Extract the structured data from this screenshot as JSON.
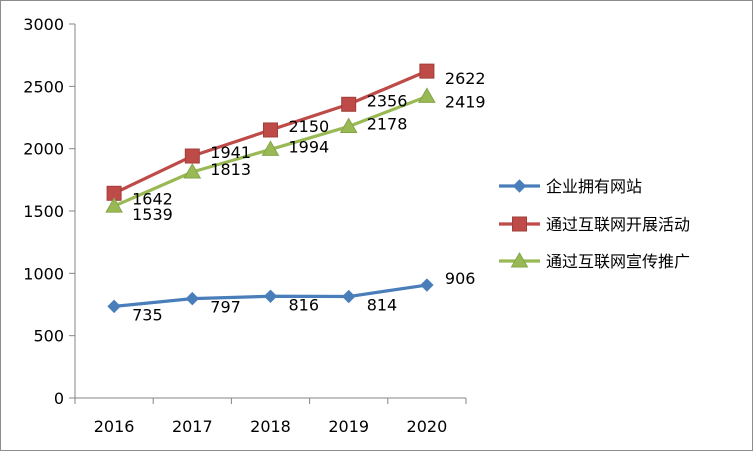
{
  "chart_data": {
    "type": "line",
    "title": "",
    "xlabel": "",
    "ylabel": "",
    "categories": [
      "2016",
      "2017",
      "2018",
      "2019",
      "2020"
    ],
    "ylim": [
      0,
      3000
    ],
    "yticks": [
      0,
      500,
      1000,
      1500,
      2000,
      2500,
      3000
    ],
    "grid": false,
    "legend_position": "right",
    "series": [
      {
        "name": "企业拥有网站",
        "values": [
          735,
          797,
          816,
          814,
          906
        ],
        "color": "#4a7ebb",
        "marker": "diamond"
      },
      {
        "name": "通过互联网开展活动",
        "values": [
          1642,
          1941,
          2150,
          2356,
          2622
        ],
        "color": "#be4b48",
        "marker": "square"
      },
      {
        "name": "通过互联网宣传推广",
        "values": [
          1539,
          1813,
          1994,
          2178,
          2419
        ],
        "color": "#98b954",
        "marker": "triangle"
      }
    ]
  }
}
